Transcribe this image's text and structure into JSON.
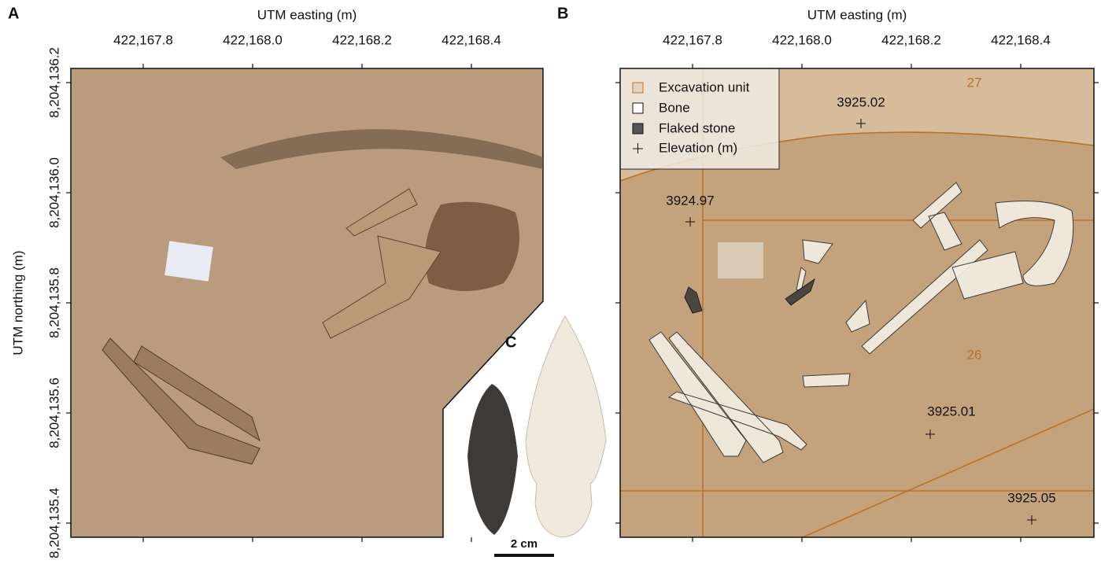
{
  "panel_labels": [
    "A",
    "B",
    "C"
  ],
  "panel_a": {
    "x_label": "UTM easting (m)",
    "y_label": "UTM northing (m)",
    "xticks": [
      "422,167.8",
      "422,168.0",
      "422,168.2",
      "422,168.4"
    ],
    "yticks": [
      "8,204,136.2",
      "8,204,136.0",
      "8,204,135.8",
      "8,204,135.6",
      "8,204,135.4"
    ]
  },
  "panel_b": {
    "x_label": "UTM easting (m)",
    "xticks": [
      "422,167.8",
      "422,168.0",
      "422,168.2",
      "422,168.4"
    ],
    "legend": [
      "Excavation unit",
      "Bone",
      "Flaked stone",
      "Elevation (m)"
    ],
    "unit_labels": [
      "27",
      "26"
    ],
    "elevations": [
      "3925.02",
      "3924.97",
      "3925.01",
      "3925.05"
    ]
  },
  "scale_bar": "2 cm"
}
